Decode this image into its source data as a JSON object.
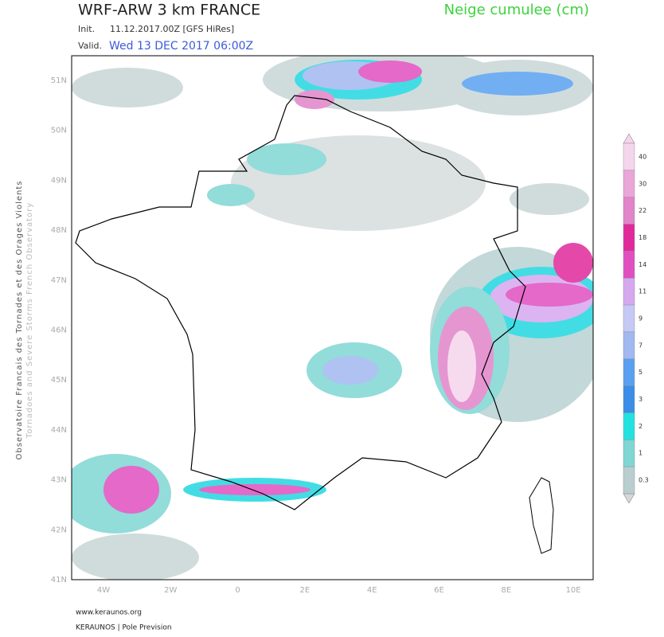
{
  "header": {
    "title": "WRF-ARW 3 km FRANCE",
    "product": "Neige cumulee (cm)",
    "init_label": "Init.",
    "init_value": "11.12.2017.00Z [GFS HiRes]",
    "valid_label": "Valid.",
    "valid_value": "Wed 13 DEC 2017 06:00Z"
  },
  "side_text": [
    "Observatoire Francais des Tornades et des Orages Violents",
    "Tornadoes and Severe Storms French Observatory"
  ],
  "map": {
    "lat_labels": [
      "51N",
      "50N",
      "49N",
      "48N",
      "47N",
      "46N",
      "45N",
      "44N",
      "43N",
      "42N",
      "41N"
    ],
    "lon_labels": [
      "4W",
      "2W",
      "0",
      "2E",
      "4E",
      "6E",
      "8E",
      "10E"
    ]
  },
  "legend": {
    "levels": [
      {
        "label": "40",
        "color": "#f5d5ec"
      },
      {
        "label": "30",
        "color": "#eaa6d8"
      },
      {
        "label": "22",
        "color": "#e184c9"
      },
      {
        "label": "18",
        "color": "#e02a9c"
      },
      {
        "label": "14",
        "color": "#e04fc0"
      },
      {
        "label": "11",
        "color": "#d6a8f0"
      },
      {
        "label": "9",
        "color": "#c6c8f6"
      },
      {
        "label": "7",
        "color": "#a2b8f0"
      },
      {
        "label": "5",
        "color": "#5aa0f0"
      },
      {
        "label": "3",
        "color": "#3a8ee8"
      },
      {
        "label": "2",
        "color": "#22e2e0"
      },
      {
        "label": "1",
        "color": "#7fd6d4"
      },
      {
        "label": "0.3",
        "color": "#b9cfcf"
      }
    ]
  },
  "footer": [
    "www.keraunos.org",
    "KERAUNOS | Pole Prevision"
  ]
}
